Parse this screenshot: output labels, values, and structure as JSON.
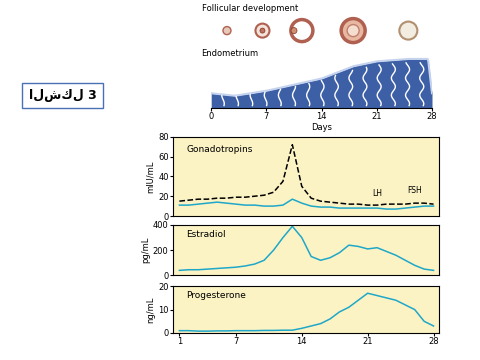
{
  "label": "الشكل 3",
  "diagram": {
    "follicles_title": "Follicular development",
    "endometrium_title": "Endometrium",
    "xlabel": "Days",
    "xlim": [
      0,
      28
    ],
    "xticks": [
      0,
      7,
      14,
      21,
      28
    ]
  },
  "chart_data": [
    {
      "type": "line",
      "title": "Gonadotropins",
      "ylabel": "mIU/mL",
      "x": [
        1,
        2,
        3,
        4,
        5,
        6,
        7,
        8,
        9,
        10,
        11,
        12,
        13,
        14,
        15,
        16,
        17,
        18,
        19,
        20,
        21,
        22,
        23,
        24,
        25,
        26,
        27,
        28
      ],
      "xlim": [
        0.3,
        28.6
      ],
      "ylim": [
        0,
        80
      ],
      "yticks": [
        0,
        20,
        40,
        60,
        80
      ],
      "tick_labels": "y",
      "series": [
        {
          "name": "LH",
          "color": "#000000",
          "line_style": "dashed",
          "values": [
            15,
            16,
            17,
            17,
            18,
            18,
            19,
            19,
            20,
            21,
            24,
            35,
            72,
            30,
            18,
            15,
            14,
            13,
            12,
            12,
            11,
            11,
            12,
            12,
            12,
            13,
            13,
            12
          ]
        },
        {
          "name": "FSH",
          "color": "#1fa7c9",
          "line_style": "solid",
          "values": [
            11,
            11,
            12,
            13,
            14,
            13,
            12,
            11,
            11,
            10,
            10,
            11,
            17,
            13,
            10,
            9,
            9,
            8,
            8,
            8,
            8,
            8,
            7,
            7,
            8,
            9,
            10,
            10
          ]
        }
      ]
    },
    {
      "type": "line",
      "title": "Estradiol",
      "ylabel": "pg/mL",
      "color": "#1fa7c9",
      "x": [
        1,
        2,
        3,
        4,
        5,
        6,
        7,
        8,
        9,
        10,
        11,
        12,
        13,
        14,
        15,
        16,
        17,
        18,
        19,
        20,
        21,
        22,
        23,
        24,
        25,
        26,
        27,
        28
      ],
      "values": [
        40,
        45,
        45,
        50,
        55,
        60,
        65,
        75,
        90,
        120,
        200,
        300,
        390,
        300,
        150,
        120,
        140,
        180,
        240,
        230,
        210,
        220,
        190,
        160,
        120,
        80,
        50,
        40
      ],
      "xlim": [
        0.3,
        28.6
      ],
      "ylim": [
        0,
        400
      ],
      "yticks": [
        0,
        200,
        400
      ],
      "tick_labels": "y"
    },
    {
      "type": "line",
      "title": "Progesterone",
      "ylabel": "ng/mL",
      "color": "#1fa7c9",
      "x": [
        1,
        2,
        3,
        4,
        5,
        6,
        7,
        8,
        9,
        10,
        11,
        12,
        13,
        14,
        15,
        16,
        17,
        18,
        19,
        20,
        21,
        22,
        23,
        24,
        25,
        26,
        27,
        28
      ],
      "values": [
        1,
        1,
        0.8,
        0.8,
        0.9,
        0.9,
        1,
        1,
        1,
        1.1,
        1.1,
        1.2,
        1.2,
        2,
        3,
        4,
        6,
        9,
        11,
        14,
        17,
        16,
        15,
        14,
        12,
        10,
        5,
        3
      ],
      "xlim": [
        0.3,
        28.6
      ],
      "ylim": [
        0,
        20
      ],
      "yticks": [
        0,
        10,
        20
      ],
      "xticks": [
        1,
        7,
        14,
        21,
        28
      ]
    }
  ]
}
